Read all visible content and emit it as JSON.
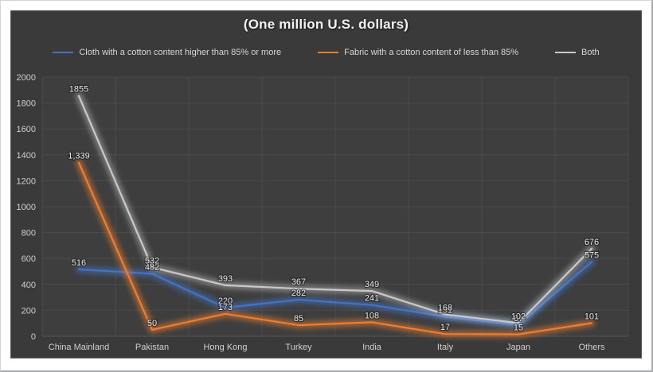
{
  "chart_data": {
    "type": "line",
    "title": "(One million U.S. dollars)",
    "categories": [
      "China Mainland",
      "Pakistan",
      "Hong Kong",
      "Turkey",
      "India",
      "Italy",
      "Japan",
      "Others"
    ],
    "series": [
      {
        "name": "Cloth with a cotton content higher than 85% or more",
        "color": "#4472c4",
        "glow": "rgba(68,114,196,0.55)",
        "values": [
          516,
          482,
          220,
          282,
          241,
          151,
          87,
          575
        ],
        "labels": [
          "516",
          "482",
          "220",
          "282",
          "241",
          "151",
          "87",
          "575"
        ]
      },
      {
        "name": "Fabric with a cotton content of less than 85%",
        "color": "#ed7d31",
        "glow": "rgba(237,125,49,0.55)",
        "values": [
          1339,
          50,
          173,
          85,
          108,
          17,
          15,
          101
        ],
        "labels": [
          "1,339",
          "50",
          "173",
          "85",
          "108",
          "17",
          "15",
          "101"
        ]
      },
      {
        "name": "Both",
        "color": "#c9c9c9",
        "glow": "rgba(230,230,230,0.38)",
        "values": [
          1855,
          532,
          393,
          367,
          349,
          168,
          102,
          676
        ],
        "labels": [
          "1855",
          "532",
          "393",
          "367",
          "349",
          "168",
          "102",
          "676"
        ]
      }
    ],
    "ylim": [
      0,
      2000
    ],
    "yticks": [
      0,
      200,
      400,
      600,
      800,
      1000,
      1200,
      1400,
      1600,
      1800,
      2000
    ],
    "grid": "both",
    "legend_position": "top",
    "xlabel": "",
    "ylabel": ""
  },
  "style_colors": {
    "chart_background": "#3a3a3a",
    "plot_background": "#3e3e3e",
    "gridline": "#4b4b4b",
    "axis_line": "#555555",
    "axis_text": "#cfcfcf",
    "title_text": "#f2f2f2"
  }
}
